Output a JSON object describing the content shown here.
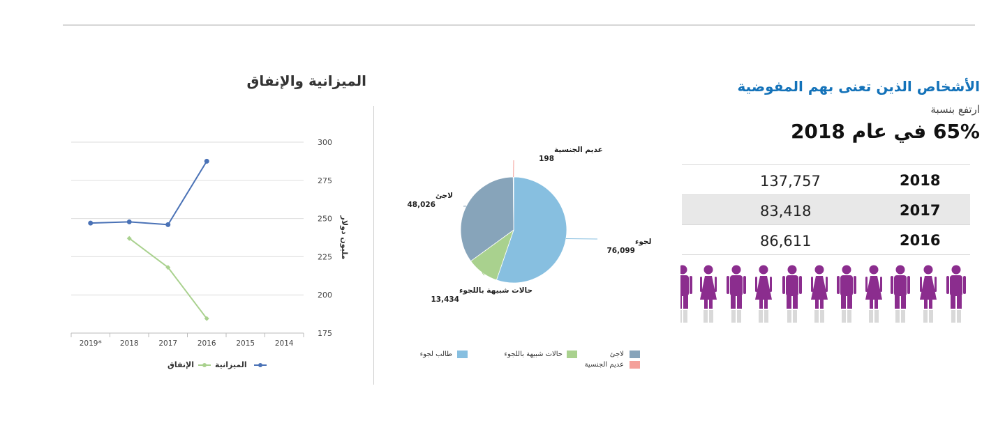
{
  "info": {
    "title": "الأشخاص الذين تعنى بهم المفوضية",
    "subtitle": "ارتفع بنسبة",
    "headline": "65% في عام 2018",
    "rows": [
      {
        "year": "2018",
        "value": "137,757"
      },
      {
        "year": "2017",
        "value": "83,418"
      },
      {
        "year": "2016",
        "value": "86,611"
      }
    ],
    "figure_colors": {
      "purple": "#8b2d8e",
      "grey": "#d9d9d9"
    }
  },
  "chart_data": [
    {
      "type": "pie",
      "title": "",
      "slices": [
        {
          "label": "طالب لجوء",
          "value": 76099,
          "value_label": "76,099",
          "color": "#87bfe0"
        },
        {
          "label": "حالات شبيهة باللجوء",
          "value": 13434,
          "value_label": "13,434",
          "color": "#a9d18e"
        },
        {
          "label": "لاجئ",
          "value": 48026,
          "value_label": "48,026",
          "color": "#87a4ba"
        },
        {
          "label": "عديم الجنسية",
          "value": 198,
          "value_label": "198",
          "color": "#f4a09a"
        }
      ],
      "legend": [
        {
          "label": "لاجئ",
          "color": "#87a4ba"
        },
        {
          "label": "حالات شبيهة باللجوء",
          "color": "#a9d18e"
        },
        {
          "label": "طالب لجوء",
          "color": "#87bfe0"
        },
        {
          "label": "عديم الجنسية",
          "color": "#f4a09a"
        }
      ]
    },
    {
      "type": "line",
      "title": "الميزانية والإنفاق",
      "ylabel": "مليون دولار",
      "categories": [
        "2019*",
        "2018",
        "2017",
        "2016",
        "2015",
        "2014"
      ],
      "ylim": [
        175,
        300
      ],
      "yticks": [
        "300",
        "275",
        "250",
        "225",
        "200",
        "175"
      ],
      "grid": true,
      "legend_position": "bottom",
      "series": [
        {
          "name": "الميزانية",
          "color": "#4a72b6",
          "values": [
            247,
            247.8,
            246,
            287.5,
            null,
            null
          ]
        },
        {
          "name": "الإنفاق",
          "color": "#a9d18e",
          "values": [
            null,
            237,
            218,
            184.5,
            null,
            null
          ]
        }
      ]
    }
  ]
}
